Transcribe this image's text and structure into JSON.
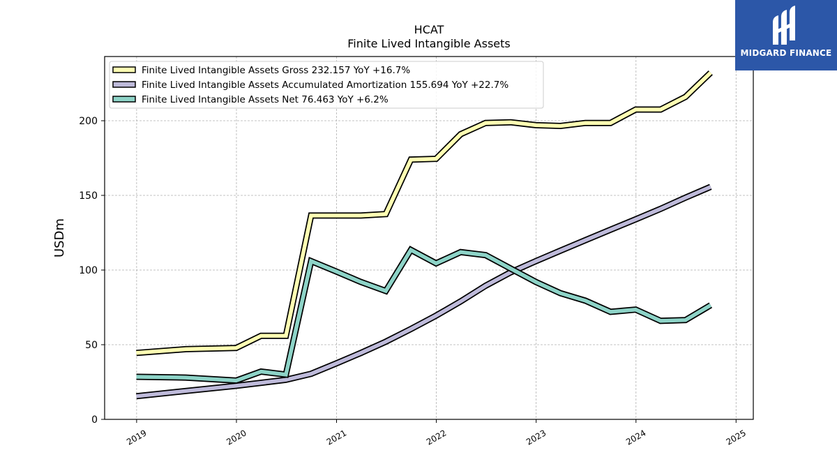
{
  "brand": {
    "name": "MIDGARD FINANCE",
    "bg_color": "#2c57a8"
  },
  "chart_data": {
    "type": "line",
    "title": "HCAT",
    "subtitle": "Finite Lived Intangible Assets",
    "ylabel": "USDm",
    "xlabel": "",
    "ylim": [
      0,
      243
    ],
    "xlim": [
      "2018-09-06",
      "2025-03-05"
    ],
    "yticks": [
      0,
      50,
      100,
      150,
      200
    ],
    "xticks": [
      "2019",
      "2020",
      "2021",
      "2022",
      "2023",
      "2024",
      "2025"
    ],
    "grid": true,
    "legend_position": "top-left",
    "series": [
      {
        "name": "Finite Lived Intangible Assets Gross  232.157 YoY +16.7%",
        "color": "#ffffb3",
        "points": [
          [
            "2018-12-31",
            44.5
          ],
          [
            "2019-06-30",
            47.0
          ],
          [
            "2019-12-31",
            47.8
          ],
          [
            "2020-03-31",
            56.0
          ],
          [
            "2020-06-30",
            56.0
          ],
          [
            "2020-09-30",
            136.5
          ],
          [
            "2020-12-31",
            136.5
          ],
          [
            "2021-03-31",
            136.5
          ],
          [
            "2021-06-30",
            137.5
          ],
          [
            "2021-09-30",
            174.0
          ],
          [
            "2021-12-31",
            174.5
          ],
          [
            "2022-03-31",
            191.0
          ],
          [
            "2022-06-30",
            198.5
          ],
          [
            "2022-09-30",
            199.0
          ],
          [
            "2022-12-31",
            197.0
          ],
          [
            "2023-03-31",
            196.5
          ],
          [
            "2023-06-30",
            198.5
          ],
          [
            "2023-09-30",
            198.5
          ],
          [
            "2023-12-31",
            207.5
          ],
          [
            "2024-03-31",
            207.5
          ],
          [
            "2024-06-30",
            216.0
          ],
          [
            "2024-09-30",
            232.157
          ]
        ]
      },
      {
        "name": "Finite Lived Intangible Assets Accumulated Amortization  155.694 YoY +22.7%",
        "color": "#bebada",
        "points": [
          [
            "2018-12-31",
            15.5
          ],
          [
            "2019-06-30",
            19.0
          ],
          [
            "2019-12-31",
            22.5
          ],
          [
            "2020-03-31",
            24.5
          ],
          [
            "2020-06-30",
            26.5
          ],
          [
            "2020-09-30",
            30.5
          ],
          [
            "2020-12-31",
            37.5
          ],
          [
            "2021-03-31",
            44.5
          ],
          [
            "2021-06-30",
            52.0
          ],
          [
            "2021-09-30",
            60.5
          ],
          [
            "2021-12-31",
            69.5
          ],
          [
            "2022-03-31",
            79.0
          ],
          [
            "2022-06-30",
            89.5
          ],
          [
            "2022-09-30",
            98.5
          ],
          [
            "2022-12-31",
            106.0
          ],
          [
            "2023-03-31",
            113.0
          ],
          [
            "2023-06-30",
            120.0
          ],
          [
            "2023-09-30",
            127.0
          ],
          [
            "2023-12-31",
            134.0
          ],
          [
            "2024-03-31",
            141.0
          ],
          [
            "2024-06-30",
            148.5
          ],
          [
            "2024-09-30",
            155.694
          ]
        ]
      },
      {
        "name": "Finite Lived Intangible Assets Net  76.463 YoY +6.2%",
        "color": "#8dd3c7",
        "points": [
          [
            "2018-12-31",
            28.5
          ],
          [
            "2019-06-30",
            28.0
          ],
          [
            "2019-12-31",
            26.0
          ],
          [
            "2020-03-31",
            32.0
          ],
          [
            "2020-06-30",
            30.0
          ],
          [
            "2020-09-30",
            106.0
          ],
          [
            "2020-12-31",
            99.0
          ],
          [
            "2021-03-31",
            92.0
          ],
          [
            "2021-06-30",
            86.0
          ],
          [
            "2021-09-30",
            113.5
          ],
          [
            "2021-12-31",
            104.5
          ],
          [
            "2022-03-31",
            112.0
          ],
          [
            "2022-06-30",
            110.0
          ],
          [
            "2022-09-30",
            101.0
          ],
          [
            "2022-12-31",
            92.0
          ],
          [
            "2023-03-31",
            84.5
          ],
          [
            "2023-06-30",
            79.5
          ],
          [
            "2023-09-30",
            72.0
          ],
          [
            "2023-12-31",
            73.5
          ],
          [
            "2024-03-31",
            66.0
          ],
          [
            "2024-06-30",
            66.5
          ],
          [
            "2024-09-30",
            76.463
          ]
        ]
      }
    ]
  }
}
